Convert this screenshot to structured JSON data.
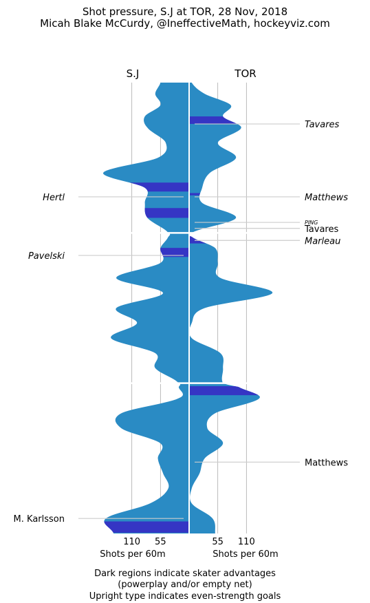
{
  "chart_data": {
    "type": "area",
    "title": "Shot pressure, S.J at TOR, 28 Nov, 2018",
    "subtitle": "Micah Blake McCurdy, @IneffectiveMath, hockeyviz.com",
    "teams": {
      "left": "S.J",
      "right": "TOR"
    },
    "xlabel_left": "Shots per 60m",
    "xlabel_right": "Shots per 60m",
    "ticks": [
      110,
      55
    ],
    "ticks_right": [
      55,
      110
    ],
    "x_range": [
      0,
      165
    ],
    "periods": 3,
    "game_minutes": 60,
    "footnotes": [
      "Dark regions indicate skater advantages",
      "(powerplay and/or empty net)",
      "Upright type indicates even-strength goals"
    ],
    "colors": {
      "fill": "#2a8bc4",
      "advantage": "#3535c4",
      "grid": "#aaaaaa",
      "goal_line": "#cccccc"
    },
    "series": [
      {
        "name": "S.J",
        "side": "left",
        "t": [
          0,
          1.5,
          3,
          4.5,
          6,
          8,
          10,
          12,
          14,
          16,
          18,
          20,
          20.5,
          22,
          24,
          26,
          28,
          30,
          32,
          34,
          36,
          38,
          40,
          40.5,
          42,
          44,
          46,
          48,
          50,
          52,
          54,
          56,
          58,
          60
        ],
        "values": [
          55,
          65,
          55,
          85,
          80,
          45,
          60,
          165,
          85,
          85,
          80,
          40,
          40,
          55,
          55,
          140,
          50,
          140,
          100,
          150,
          65,
          65,
          20,
          20,
          20,
          130,
          130,
          55,
          60,
          50,
          40,
          75,
          160,
          145
        ]
      },
      {
        "name": "TOR",
        "side": "right",
        "t": [
          0,
          1.5,
          3,
          4.5,
          6,
          8,
          10,
          12,
          14,
          16,
          18,
          20,
          20.5,
          22,
          24,
          26,
          28,
          30,
          32,
          34,
          36,
          38,
          40,
          40.5,
          42,
          44,
          46,
          48,
          50,
          52,
          54,
          56,
          58,
          60
        ],
        "values": [
          5,
          30,
          80,
          65,
          100,
          55,
          90,
          40,
          25,
          25,
          90,
          5,
          5,
          50,
          55,
          60,
          160,
          30,
          5,
          5,
          60,
          65,
          65,
          95,
          135,
          50,
          35,
          65,
          30,
          20,
          5,
          5,
          45,
          50
        ]
      }
    ],
    "advantages": [
      {
        "team": "TOR",
        "start": 4.5,
        "end": 5.5
      },
      {
        "team": "S.J",
        "start": 13.3,
        "end": 14.5
      },
      {
        "team": "TOR",
        "start": 14.7,
        "end": 15.0
      },
      {
        "team": "S.J",
        "start": 16.7,
        "end": 18.0
      },
      {
        "team": "TOR",
        "start": 20.2,
        "end": 21.4
      },
      {
        "team": "S.J",
        "start": 22.0,
        "end": 23.2
      },
      {
        "team": "TOR",
        "start": 40.4,
        "end": 41.6
      },
      {
        "team": "S.J",
        "start": 58.4,
        "end": 59.9
      }
    ],
    "goals": [
      {
        "team": "TOR",
        "player": "Tavares",
        "time": 5.5,
        "strength": "advantage"
      },
      {
        "team": "S.J",
        "player": "Hertl",
        "time": 15.2,
        "strength": "advantage"
      },
      {
        "team": "TOR",
        "player": "Matthews",
        "time": 15.2,
        "strength": "advantage"
      },
      {
        "team": "TOR",
        "player": "PING",
        "time": 18.6,
        "strength": "advantage",
        "small": true
      },
      {
        "team": "TOR",
        "player": "Tavares",
        "time": 19.4,
        "strength": "even"
      },
      {
        "team": "TOR",
        "player": "Marleau",
        "time": 21.0,
        "strength": "advantage"
      },
      {
        "team": "S.J",
        "player": "Pavelski",
        "time": 23.0,
        "strength": "advantage"
      },
      {
        "team": "TOR",
        "player": "Matthews",
        "time": 50.5,
        "strength": "even"
      },
      {
        "team": "S.J",
        "player": "M. Karlsson",
        "time": 58.0,
        "strength": "even"
      }
    ]
  }
}
